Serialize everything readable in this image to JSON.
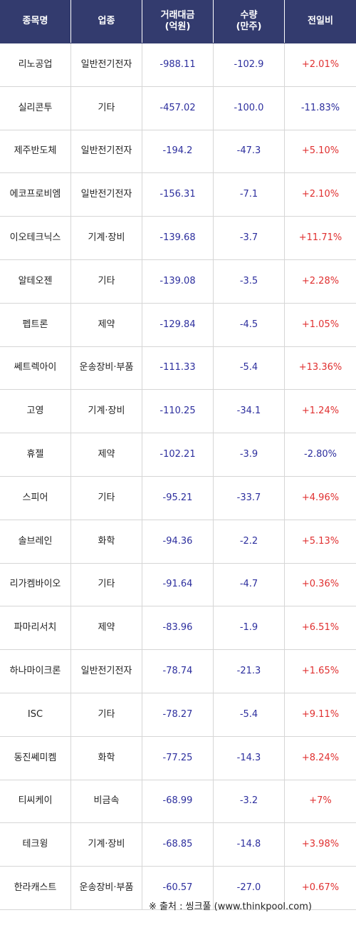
{
  "headers": [
    "종목명",
    "업종",
    "거래대금\n(억원)",
    "수량\n(만주)",
    "전일비"
  ],
  "rows": [
    {
      "name": "리노공업",
      "sector": "일반전기전자",
      "amount": "-988.11",
      "volume": "-102.9",
      "change": "+2.01%"
    },
    {
      "name": "실리콘투",
      "sector": "기타",
      "amount": "-457.02",
      "volume": "-100.0",
      "change": "-11.83%"
    },
    {
      "name": "제주반도체",
      "sector": "일반전기전자",
      "amount": "-194.2",
      "volume": "-47.3",
      "change": "+5.10%"
    },
    {
      "name": "에코프로비엠",
      "sector": "일반전기전자",
      "amount": "-156.31",
      "volume": "-7.1",
      "change": "+2.10%"
    },
    {
      "name": "이오테크닉스",
      "sector": "기계·장비",
      "amount": "-139.68",
      "volume": "-3.7",
      "change": "+11.71%"
    },
    {
      "name": "알테오젠",
      "sector": "기타",
      "amount": "-139.08",
      "volume": "-3.5",
      "change": "+2.28%"
    },
    {
      "name": "펩트론",
      "sector": "제약",
      "amount": "-129.84",
      "volume": "-4.5",
      "change": "+1.05%"
    },
    {
      "name": "쎄트렉아이",
      "sector": "운송장비·부품",
      "amount": "-111.33",
      "volume": "-5.4",
      "change": "+13.36%"
    },
    {
      "name": "고영",
      "sector": "기계·장비",
      "amount": "-110.25",
      "volume": "-34.1",
      "change": "+1.24%"
    },
    {
      "name": "휴젤",
      "sector": "제약",
      "amount": "-102.21",
      "volume": "-3.9",
      "change": "-2.80%"
    },
    {
      "name": "스피어",
      "sector": "기타",
      "amount": "-95.21",
      "volume": "-33.7",
      "change": "+4.96%"
    },
    {
      "name": "솔브레인",
      "sector": "화학",
      "amount": "-94.36",
      "volume": "-2.2",
      "change": "+5.13%"
    },
    {
      "name": "리가켐바이오",
      "sector": "기타",
      "amount": "-91.64",
      "volume": "-4.7",
      "change": "+0.36%"
    },
    {
      "name": "파마리서치",
      "sector": "제약",
      "amount": "-83.96",
      "volume": "-1.9",
      "change": "+6.51%"
    },
    {
      "name": "하나마이크론",
      "sector": "일반전기전자",
      "amount": "-78.74",
      "volume": "-21.3",
      "change": "+1.65%"
    },
    {
      "name": "ISC",
      "sector": "기타",
      "amount": "-78.27",
      "volume": "-5.4",
      "change": "+9.11%"
    },
    {
      "name": "동진쎄미켐",
      "sector": "화학",
      "amount": "-77.25",
      "volume": "-14.3",
      "change": "+8.24%"
    },
    {
      "name": "티씨케이",
      "sector": "비금속",
      "amount": "-68.99",
      "volume": "-3.2",
      "change": "+7%"
    },
    {
      "name": "테크윙",
      "sector": "기계·장비",
      "amount": "-68.85",
      "volume": "-14.8",
      "change": "+3.98%"
    },
    {
      "name": "한라캐스트",
      "sector": "운송장비·부품",
      "amount": "-60.57",
      "volume": "-27.0",
      "change": "+0.67%"
    }
  ],
  "footer": "※ 출처 : 씽크풀 (www.thinkpool.com)",
  "colors": {
    "header_bg": "#333b6e",
    "positive": "#e03030",
    "negative": "#2d2f9e"
  }
}
